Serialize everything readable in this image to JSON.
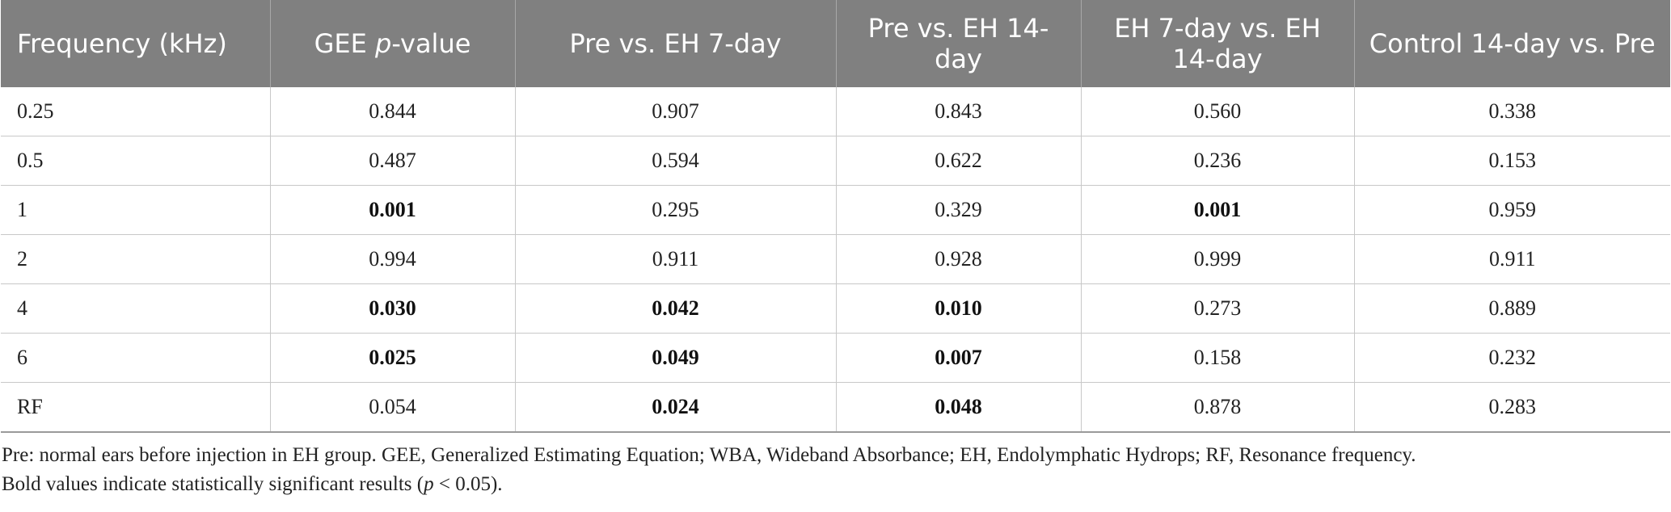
{
  "table": {
    "headers": [
      {
        "pre": "Frequency (kHz)",
        "em": "",
        "post": ""
      },
      {
        "pre": "GEE ",
        "em": "p",
        "post": "-value"
      },
      {
        "pre": "Pre vs. EH 7-day",
        "em": "",
        "post": ""
      },
      {
        "pre": "Pre vs. EH 14-day",
        "em": "",
        "post": ""
      },
      {
        "pre": "EH 7-day vs. EH 14-day",
        "em": "",
        "post": ""
      },
      {
        "pre": "Control 14-day vs. Pre",
        "em": "",
        "post": ""
      }
    ],
    "rows": [
      {
        "cells": [
          "0.25",
          "0.844",
          "0.907",
          "0.843",
          "0.560",
          "0.338"
        ],
        "bold": [
          false,
          false,
          false,
          false,
          false,
          false
        ]
      },
      {
        "cells": [
          "0.5",
          "0.487",
          "0.594",
          "0.622",
          "0.236",
          "0.153"
        ],
        "bold": [
          false,
          false,
          false,
          false,
          false,
          false
        ]
      },
      {
        "cells": [
          "1",
          "0.001",
          "0.295",
          "0.329",
          "0.001",
          "0.959"
        ],
        "bold": [
          false,
          true,
          false,
          false,
          true,
          false
        ]
      },
      {
        "cells": [
          "2",
          "0.994",
          "0.911",
          "0.928",
          "0.999",
          "0.911"
        ],
        "bold": [
          false,
          false,
          false,
          false,
          false,
          false
        ]
      },
      {
        "cells": [
          "4",
          "0.030",
          "0.042",
          "0.010",
          "0.273",
          "0.889"
        ],
        "bold": [
          false,
          true,
          true,
          true,
          false,
          false
        ]
      },
      {
        "cells": [
          "6",
          "0.025",
          "0.049",
          "0.007",
          "0.158",
          "0.232"
        ],
        "bold": [
          false,
          true,
          true,
          true,
          false,
          false
        ]
      },
      {
        "cells": [
          "RF",
          "0.054",
          "0.024",
          "0.048",
          "0.878",
          "0.283"
        ],
        "bold": [
          false,
          false,
          true,
          true,
          false,
          false
        ]
      }
    ]
  },
  "notes": {
    "line1": "Pre: normal ears before injection in EH group. GEE, Generalized Estimating Equation; WBA, Wideband Absorbance; EH, Endolymphatic Hydrops; RF, Resonance frequency.",
    "line2_pre": "Bold values indicate statistically significant results (",
    "line2_em": "p",
    "line2_post": " < 0.05)."
  }
}
